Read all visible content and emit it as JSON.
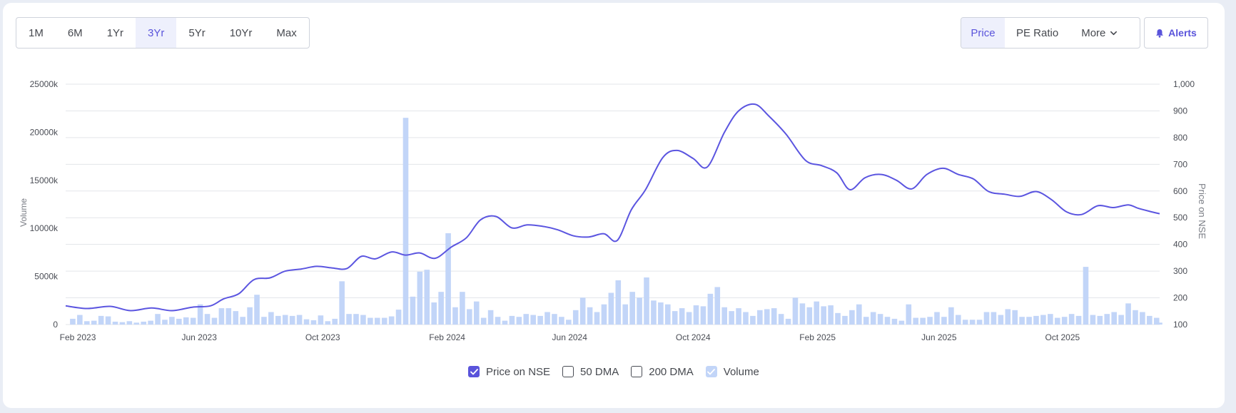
{
  "ranges": [
    "1M",
    "6M",
    "1Yr",
    "3Yr",
    "5Yr",
    "10Yr",
    "Max"
  ],
  "active_range": "3Yr",
  "metrics": [
    "Price",
    "PE Ratio"
  ],
  "more_label": "More",
  "alerts_label": "Alerts",
  "legend": [
    {
      "label": "Price on NSE",
      "checked": true,
      "kind": "price"
    },
    {
      "label": "50 DMA",
      "checked": false,
      "kind": "dma"
    },
    {
      "label": "200 DMA",
      "checked": false,
      "kind": "dma"
    },
    {
      "label": "Volume",
      "checked": true,
      "kind": "volume"
    }
  ],
  "colors": {
    "accent": "#5a54db",
    "price_line": "#5b55e0",
    "volume_bar": "#c2d5f8",
    "grid": "#e3e5ea"
  },
  "chart_data": {
    "type": "line",
    "title": "",
    "xlabel": "",
    "y_left_label": "Volume",
    "y_right_label": "Price on NSE",
    "x_ticks": [
      "Feb 2023",
      "Jun 2023",
      "Oct 2023",
      "Feb 2024",
      "Jun 2024",
      "Oct 2024",
      "Feb 2025",
      "Jun 2025",
      "Oct 2025"
    ],
    "y_left_ticks": [
      "0",
      "5000k",
      "10000k",
      "15000k",
      "20000k",
      "25000k"
    ],
    "y_right_ticks": [
      "100",
      "200",
      "300",
      "400",
      "500",
      "600",
      "700",
      "800",
      "900",
      "1,000"
    ],
    "y_left_range": [
      0,
      25000
    ],
    "y_right_range": [
      100,
      1000
    ],
    "x_range": [
      "2023-01-20",
      "2026-01-05"
    ],
    "grid": true,
    "legend_position": "bottom",
    "series": [
      {
        "name": "Price on NSE",
        "axis": "right",
        "points": [
          [
            "2023-01-20",
            170
          ],
          [
            "2023-02-10",
            160
          ],
          [
            "2023-03-05",
            168
          ],
          [
            "2023-03-25",
            152
          ],
          [
            "2023-04-15",
            162
          ],
          [
            "2023-05-05",
            152
          ],
          [
            "2023-05-25",
            165
          ],
          [
            "2023-06-12",
            170
          ],
          [
            "2023-06-25",
            196
          ],
          [
            "2023-07-10",
            215
          ],
          [
            "2023-07-25",
            268
          ],
          [
            "2023-08-10",
            275
          ],
          [
            "2023-08-25",
            300
          ],
          [
            "2023-09-10",
            308
          ],
          [
            "2023-09-25",
            318
          ],
          [
            "2023-10-10",
            312
          ],
          [
            "2023-10-25",
            310
          ],
          [
            "2023-11-08",
            355
          ],
          [
            "2023-11-22",
            346
          ],
          [
            "2023-12-08",
            372
          ],
          [
            "2023-12-22",
            360
          ],
          [
            "2024-01-05",
            368
          ],
          [
            "2024-01-20",
            348
          ],
          [
            "2024-02-05",
            390
          ],
          [
            "2024-02-20",
            425
          ],
          [
            "2024-03-05",
            492
          ],
          [
            "2024-03-20",
            505
          ],
          [
            "2024-04-05",
            462
          ],
          [
            "2024-04-20",
            473
          ],
          [
            "2024-05-05",
            468
          ],
          [
            "2024-05-20",
            455
          ],
          [
            "2024-06-05",
            432
          ],
          [
            "2024-06-20",
            428
          ],
          [
            "2024-07-05",
            440
          ],
          [
            "2024-07-18",
            415
          ],
          [
            "2024-08-01",
            530
          ],
          [
            "2024-08-15",
            605
          ],
          [
            "2024-09-01",
            725
          ],
          [
            "2024-09-15",
            752
          ],
          [
            "2024-10-01",
            722
          ],
          [
            "2024-10-15",
            690
          ],
          [
            "2024-11-01",
            820
          ],
          [
            "2024-11-15",
            900
          ],
          [
            "2024-12-01",
            925
          ],
          [
            "2024-12-15",
            880
          ],
          [
            "2025-01-01",
            812
          ],
          [
            "2025-01-20",
            715
          ],
          [
            "2025-02-05",
            695
          ],
          [
            "2025-02-20",
            668
          ],
          [
            "2025-03-05",
            605
          ],
          [
            "2025-03-20",
            650
          ],
          [
            "2025-04-05",
            662
          ],
          [
            "2025-04-20",
            640
          ],
          [
            "2025-05-05",
            608
          ],
          [
            "2025-05-20",
            662
          ],
          [
            "2025-06-05",
            685
          ],
          [
            "2025-06-20",
            662
          ],
          [
            "2025-07-05",
            645
          ],
          [
            "2025-07-20",
            598
          ],
          [
            "2025-08-05",
            588
          ],
          [
            "2025-08-20",
            580
          ],
          [
            "2025-09-05",
            598
          ],
          [
            "2025-09-20",
            568
          ],
          [
            "2025-10-05",
            522
          ],
          [
            "2025-10-20",
            512
          ],
          [
            "2025-11-05",
            545
          ],
          [
            "2025-11-20",
            538
          ],
          [
            "2025-12-05",
            548
          ],
          [
            "2025-12-15",
            535
          ],
          [
            "2025-12-28",
            522
          ],
          [
            "2026-01-05",
            515
          ]
        ]
      },
      {
        "name": "Volume",
        "axis": "left",
        "type": "bar",
        "points": [
          [
            "2023-01-27",
            600
          ],
          [
            "2023-02-03",
            1000
          ],
          [
            "2023-02-10",
            350
          ],
          [
            "2023-02-17",
            400
          ],
          [
            "2023-02-24",
            900
          ],
          [
            "2023-03-03",
            850
          ],
          [
            "2023-03-10",
            300
          ],
          [
            "2023-03-17",
            250
          ],
          [
            "2023-03-24",
            350
          ],
          [
            "2023-03-31",
            200
          ],
          [
            "2023-04-07",
            300
          ],
          [
            "2023-04-14",
            400
          ],
          [
            "2023-04-21",
            1100
          ],
          [
            "2023-04-28",
            500
          ],
          [
            "2023-05-05",
            800
          ],
          [
            "2023-05-12",
            600
          ],
          [
            "2023-05-19",
            750
          ],
          [
            "2023-05-26",
            700
          ],
          [
            "2023-06-02",
            2100
          ],
          [
            "2023-06-09",
            1100
          ],
          [
            "2023-06-16",
            700
          ],
          [
            "2023-06-23",
            1700
          ],
          [
            "2023-06-30",
            1700
          ],
          [
            "2023-07-07",
            1400
          ],
          [
            "2023-07-14",
            800
          ],
          [
            "2023-07-21",
            1800
          ],
          [
            "2023-07-28",
            3100
          ],
          [
            "2023-08-04",
            800
          ],
          [
            "2023-08-11",
            1300
          ],
          [
            "2023-08-18",
            900
          ],
          [
            "2023-08-25",
            1000
          ],
          [
            "2023-09-01",
            900
          ],
          [
            "2023-09-08",
            1000
          ],
          [
            "2023-09-15",
            550
          ],
          [
            "2023-09-22",
            450
          ],
          [
            "2023-09-29",
            950
          ],
          [
            "2023-10-06",
            350
          ],
          [
            "2023-10-13",
            600
          ],
          [
            "2023-10-20",
            4500
          ],
          [
            "2023-10-27",
            1100
          ],
          [
            "2023-11-03",
            1100
          ],
          [
            "2023-11-10",
            1000
          ],
          [
            "2023-11-17",
            700
          ],
          [
            "2023-11-24",
            700
          ],
          [
            "2023-12-01",
            700
          ],
          [
            "2023-12-08",
            850
          ],
          [
            "2023-12-15",
            1550
          ],
          [
            "2023-12-22",
            21500
          ],
          [
            "2023-12-29",
            2900
          ],
          [
            "2024-01-05",
            5500
          ],
          [
            "2024-01-12",
            5700
          ],
          [
            "2024-01-19",
            2300
          ],
          [
            "2024-01-26",
            3400
          ],
          [
            "2024-02-02",
            9500
          ],
          [
            "2024-02-09",
            1800
          ],
          [
            "2024-02-16",
            3400
          ],
          [
            "2024-02-23",
            1600
          ],
          [
            "2024-03-01",
            2400
          ],
          [
            "2024-03-08",
            700
          ],
          [
            "2024-03-15",
            1500
          ],
          [
            "2024-03-22",
            800
          ],
          [
            "2024-03-29",
            400
          ],
          [
            "2024-04-05",
            900
          ],
          [
            "2024-04-12",
            800
          ],
          [
            "2024-04-19",
            1100
          ],
          [
            "2024-04-26",
            1000
          ],
          [
            "2024-05-03",
            900
          ],
          [
            "2024-05-10",
            1300
          ],
          [
            "2024-05-17",
            1100
          ],
          [
            "2024-05-24",
            800
          ],
          [
            "2024-05-31",
            500
          ],
          [
            "2024-06-07",
            1500
          ],
          [
            "2024-06-14",
            2800
          ],
          [
            "2024-06-21",
            1800
          ],
          [
            "2024-06-28",
            1300
          ],
          [
            "2024-07-05",
            2100
          ],
          [
            "2024-07-12",
            3300
          ],
          [
            "2024-07-19",
            4600
          ],
          [
            "2024-07-26",
            2100
          ],
          [
            "2024-08-02",
            3400
          ],
          [
            "2024-08-09",
            2800
          ],
          [
            "2024-08-16",
            4900
          ],
          [
            "2024-08-23",
            2500
          ],
          [
            "2024-08-30",
            2300
          ],
          [
            "2024-09-06",
            2100
          ],
          [
            "2024-09-13",
            1400
          ],
          [
            "2024-09-20",
            1700
          ],
          [
            "2024-09-27",
            1300
          ],
          [
            "2024-10-04",
            2000
          ],
          [
            "2024-10-11",
            1900
          ],
          [
            "2024-10-18",
            3200
          ],
          [
            "2024-10-25",
            3900
          ],
          [
            "2024-11-01",
            1800
          ],
          [
            "2024-11-08",
            1400
          ],
          [
            "2024-11-15",
            1700
          ],
          [
            "2024-11-22",
            1300
          ],
          [
            "2024-11-29",
            900
          ],
          [
            "2024-12-06",
            1500
          ],
          [
            "2024-12-13",
            1600
          ],
          [
            "2024-12-20",
            1700
          ],
          [
            "2024-12-27",
            1100
          ],
          [
            "2025-01-03",
            600
          ],
          [
            "2025-01-10",
            2800
          ],
          [
            "2025-01-17",
            2200
          ],
          [
            "2025-01-24",
            1800
          ],
          [
            "2025-01-31",
            2400
          ],
          [
            "2025-02-07",
            1900
          ],
          [
            "2025-02-14",
            2000
          ],
          [
            "2025-02-21",
            1200
          ],
          [
            "2025-02-28",
            900
          ],
          [
            "2025-03-07",
            1500
          ],
          [
            "2025-03-14",
            2100
          ],
          [
            "2025-03-21",
            800
          ],
          [
            "2025-03-28",
            1300
          ],
          [
            "2025-04-04",
            1100
          ],
          [
            "2025-04-11",
            800
          ],
          [
            "2025-04-18",
            600
          ],
          [
            "2025-04-25",
            400
          ],
          [
            "2025-05-02",
            2100
          ],
          [
            "2025-05-09",
            700
          ],
          [
            "2025-05-16",
            700
          ],
          [
            "2025-05-23",
            800
          ],
          [
            "2025-05-30",
            1300
          ],
          [
            "2025-06-06",
            800
          ],
          [
            "2025-06-13",
            1800
          ],
          [
            "2025-06-20",
            1000
          ],
          [
            "2025-06-27",
            500
          ],
          [
            "2025-07-04",
            500
          ],
          [
            "2025-07-11",
            500
          ],
          [
            "2025-07-18",
            1300
          ],
          [
            "2025-07-25",
            1300
          ],
          [
            "2025-08-01",
            1000
          ],
          [
            "2025-08-08",
            1600
          ],
          [
            "2025-08-15",
            1500
          ],
          [
            "2025-08-22",
            800
          ],
          [
            "2025-08-29",
            800
          ],
          [
            "2025-09-05",
            900
          ],
          [
            "2025-09-12",
            1000
          ],
          [
            "2025-09-19",
            1100
          ],
          [
            "2025-09-26",
            700
          ],
          [
            "2025-10-03",
            800
          ],
          [
            "2025-10-10",
            1100
          ],
          [
            "2025-10-17",
            900
          ],
          [
            "2025-10-24",
            6000
          ],
          [
            "2025-10-31",
            1000
          ],
          [
            "2025-11-07",
            900
          ],
          [
            "2025-11-14",
            1100
          ],
          [
            "2025-11-21",
            1300
          ],
          [
            "2025-11-28",
            1000
          ],
          [
            "2025-12-05",
            2200
          ],
          [
            "2025-12-12",
            1500
          ],
          [
            "2025-12-19",
            1300
          ],
          [
            "2025-12-26",
            900
          ],
          [
            "2026-01-02",
            700
          ],
          [
            "2026-01-05",
            200
          ]
        ]
      }
    ]
  }
}
